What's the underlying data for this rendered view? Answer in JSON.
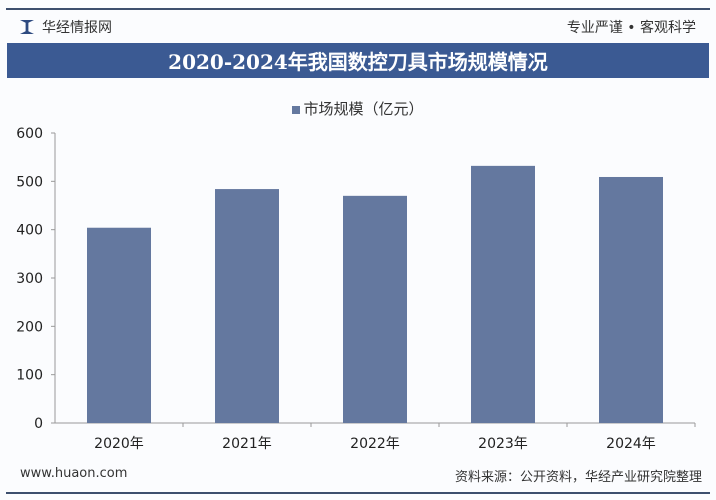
{
  "header": {
    "brand": "华经情报网",
    "slogan": "专业严谨 • 客观科学"
  },
  "footer": {
    "website": "www.huaon.com",
    "source": "资料来源：公开资料，华经产业研究院整理"
  },
  "colors": {
    "bar": "#64789f",
    "banner": "#3b5a93"
  },
  "chart_data": {
    "type": "bar",
    "title": "2020-2024年我国数控刀具市场规模情况",
    "categories": [
      "2020年",
      "2021年",
      "2022年",
      "2023年",
      "2024年"
    ],
    "series": [
      {
        "name": "市场规模（亿元）",
        "values": [
          404,
          484,
          470,
          532,
          509
        ]
      }
    ],
    "yticks": [
      "0",
      "100",
      "200",
      "300",
      "400",
      "500",
      "600"
    ],
    "ylim": [
      0,
      600
    ],
    "grid": false,
    "legend": "top"
  }
}
